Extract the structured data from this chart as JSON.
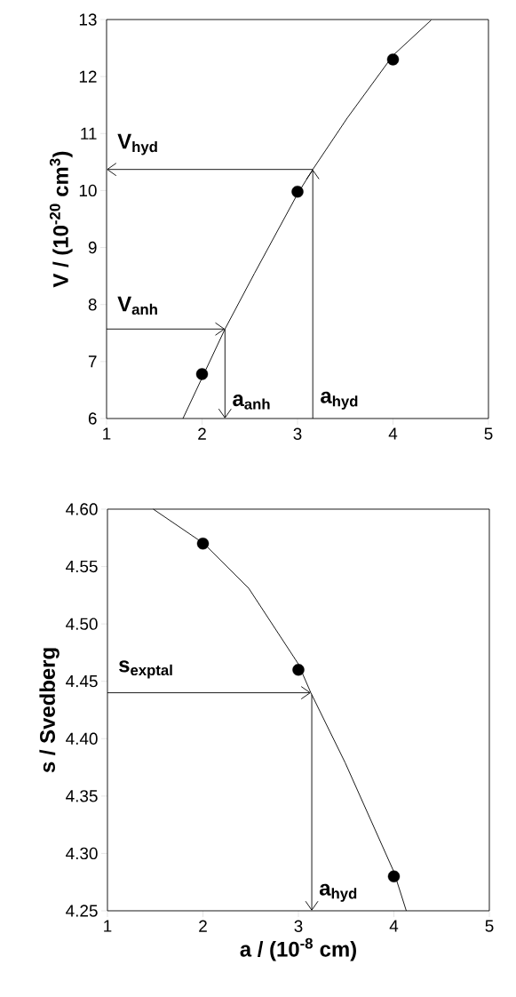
{
  "chart_data": [
    {
      "type": "scatter",
      "ylabel": "V / (10$^{-20}$ cm$^{3}$)",
      "xlim": [
        1,
        5
      ],
      "ylim": [
        6,
        13
      ],
      "xticks": [
        1,
        2,
        3,
        4,
        5
      ],
      "yticks": [
        6,
        7,
        8,
        9,
        10,
        11,
        12,
        13
      ],
      "grid": false,
      "series": [
        {
          "x": [
            2,
            3,
            4
          ],
          "values": [
            6.78,
            9.98,
            12.3
          ],
          "color": "#000000",
          "marker": "circle"
        },
        {
          "type": "line",
          "x": [
            1.8,
            2.24,
            2.55,
            3.0,
            3.16,
            3.52,
            4.0,
            4.4
          ],
          "values": [
            6.0,
            7.57,
            8.55,
            9.94,
            10.37,
            11.27,
            12.37,
            12.99
          ],
          "color": "#000000",
          "marker": "none"
        }
      ],
      "ref_lines": [
        {
          "axis": "y",
          "value": 7.57,
          "label": "V$_{anh}$"
        },
        {
          "axis": "x",
          "value": 2.24,
          "label": "a$_{anh}$"
        },
        {
          "axis": "y",
          "value": 10.37,
          "label": "V$_{hyd}$"
        },
        {
          "axis": "x",
          "value": 3.16,
          "label": "a$_{hyd}$"
        }
      ]
    },
    {
      "type": "scatter",
      "xlabel": "a / (10$^{-8}$ cm)",
      "ylabel": "s / Svedberg",
      "xlim": [
        1,
        5
      ],
      "ylim": [
        4.25,
        4.6
      ],
      "xticks": [
        1,
        2,
        3,
        4,
        5
      ],
      "yticks": [
        4.25,
        {
          "value": 4.3,
          "label": "4.30"
        },
        4.35,
        {
          "value": 4.4,
          "label": "4.40"
        },
        4.45,
        {
          "value": 4.5,
          "label": "4.50"
        },
        4.55,
        {
          "value": 4.6,
          "label": "4.60"
        }
      ],
      "grid": false,
      "series": [
        {
          "x": [
            2,
            3,
            4
          ],
          "values": [
            4.57,
            4.46,
            4.28
          ],
          "color": "#000000",
          "marker": "circle"
        },
        {
          "type": "line",
          "x": [
            1.48,
            2.01,
            2.48,
            3.0,
            3.13,
            3.49,
            4.0,
            4.13
          ],
          "values": [
            4.6,
            4.57,
            4.531,
            4.465,
            4.44,
            4.379,
            4.284,
            4.25
          ],
          "color": "#000000",
          "marker": "none"
        }
      ],
      "ref_lines": [
        {
          "axis": "y",
          "value": 4.44,
          "label": "s$_{exptal}$"
        },
        {
          "axis": "x",
          "value": 3.14,
          "label": "a$_{hyd}$"
        }
      ]
    }
  ]
}
